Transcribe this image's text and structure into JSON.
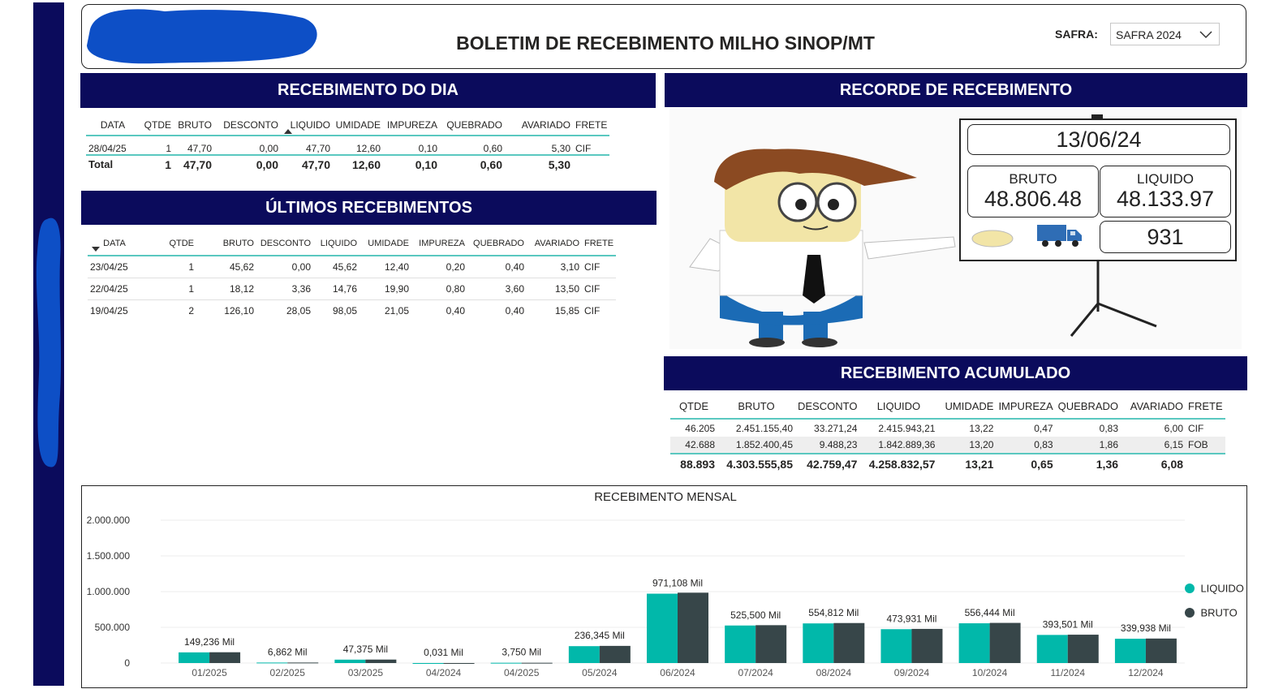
{
  "header": {
    "title": "BOLETIM DE RECEBIMENTO MILHO SINOP/MT",
    "safra_label": "SAFRA:",
    "safra_value": "SAFRA 2024"
  },
  "colors": {
    "navy": "#0b0b5c",
    "teal": "#01b8aa",
    "dark": "#374649",
    "redaction": "#0d4fc6"
  },
  "recebimento_dia": {
    "title": "RECEBIMENTO DO DIA",
    "headers": [
      "DATA",
      "QTDE",
      "BRUTO",
      "DESCONTO",
      "LIQUIDO",
      "UMIDADE",
      "IMPUREZA",
      "QUEBRADO",
      "AVARIADO",
      "FRETE"
    ],
    "row": [
      "28/04/25",
      "1",
      "47,70",
      "0,00",
      "47,70",
      "12,60",
      "0,10",
      "0,60",
      "5,30",
      "CIF"
    ],
    "total": [
      "Total",
      "1",
      "47,70",
      "0,00",
      "47,70",
      "12,60",
      "0,10",
      "0,60",
      "5,30",
      ""
    ]
  },
  "ultimos": {
    "title": "ÚLTIMOS RECEBIMENTOS",
    "headers": [
      "DATA",
      "QTDE",
      "BRUTO",
      "DESCONTO",
      "LIQUIDO",
      "UMIDADE",
      "IMPUREZA",
      "QUEBRADO",
      "AVARIADO",
      "FRETE"
    ],
    "rows": [
      [
        "23/04/25",
        "1",
        "45,62",
        "0,00",
        "45,62",
        "12,40",
        "0,20",
        "0,40",
        "3,10",
        "CIF"
      ],
      [
        "22/04/25",
        "1",
        "18,12",
        "3,36",
        "14,76",
        "19,90",
        "0,80",
        "3,60",
        "13,50",
        "CIF"
      ],
      [
        "19/04/25",
        "2",
        "126,10",
        "28,05",
        "98,05",
        "21,05",
        "0,40",
        "0,40",
        "15,85",
        "CIF"
      ]
    ]
  },
  "recorde": {
    "title": "RECORDE DE RECEBIMENTO",
    "date": "13/06/24",
    "bruto_label": "BRUTO",
    "bruto": "48.806.48",
    "liquido_label": "LIQUIDO",
    "liquido": "48.133.97",
    "count": "931",
    "truck_icon": "truck-icon"
  },
  "acumulado": {
    "title": "RECEBIMENTO ACUMULADO",
    "headers": [
      "QTDE",
      "BRUTO",
      "DESCONTO",
      "LIQUIDO",
      "UMIDADE",
      "IMPUREZA",
      "QUEBRADO",
      "AVARIADO",
      "FRETE"
    ],
    "rows": [
      [
        "46.205",
        "2.451.155,40",
        "33.271,24",
        "2.415.943,21",
        "13,22",
        "0,47",
        "0,83",
        "6,00",
        "CIF"
      ],
      [
        "42.688",
        "1.852.400,45",
        "9.488,23",
        "1.842.889,36",
        "13,20",
        "0,83",
        "1,86",
        "6,15",
        "FOB"
      ]
    ],
    "total": [
      "88.893",
      "4.303.555,85",
      "42.759,47",
      "4.258.832,57",
      "13,21",
      "0,65",
      "1,36",
      "6,08",
      ""
    ]
  },
  "chart_data": {
    "type": "bar",
    "title": "RECEBIMENTO MENSAL",
    "categories": [
      "01/2025",
      "02/2025",
      "03/2025",
      "04/2024",
      "04/2025",
      "05/2024",
      "06/2024",
      "07/2024",
      "08/2024",
      "09/2024",
      "10/2024",
      "11/2024",
      "12/2024"
    ],
    "series": [
      {
        "name": "LIQUIDO",
        "color": "#01b8aa",
        "values": [
          149236,
          6862,
          47375,
          31,
          3750,
          236345,
          971108,
          525500,
          554812,
          473931,
          556444,
          393501,
          339938
        ]
      },
      {
        "name": "BRUTO",
        "color": "#374649",
        "values": [
          151000,
          7000,
          48500,
          31,
          3800,
          240000,
          985000,
          530000,
          560000,
          478000,
          562000,
          397000,
          343000
        ]
      }
    ],
    "data_labels": [
      "149,236 Mil",
      "6,862 Mil",
      "47,375 Mil",
      "0,031 Mil",
      "3,750 Mil",
      "236,345 Mil",
      "971,108 Mil",
      "525,500 Mil",
      "554,812 Mil",
      "473,931 Mil",
      "556,444 Mil",
      "393,501 Mil",
      "339,938 Mil"
    ],
    "yticks": [
      "0",
      "500.000",
      "1.000.000",
      "1.500.000",
      "2.000.000"
    ],
    "ylim": [
      0,
      2000000
    ],
    "legend": [
      "LIQUIDO",
      "BRUTO"
    ],
    "legend_position": "right",
    "grid": true
  }
}
